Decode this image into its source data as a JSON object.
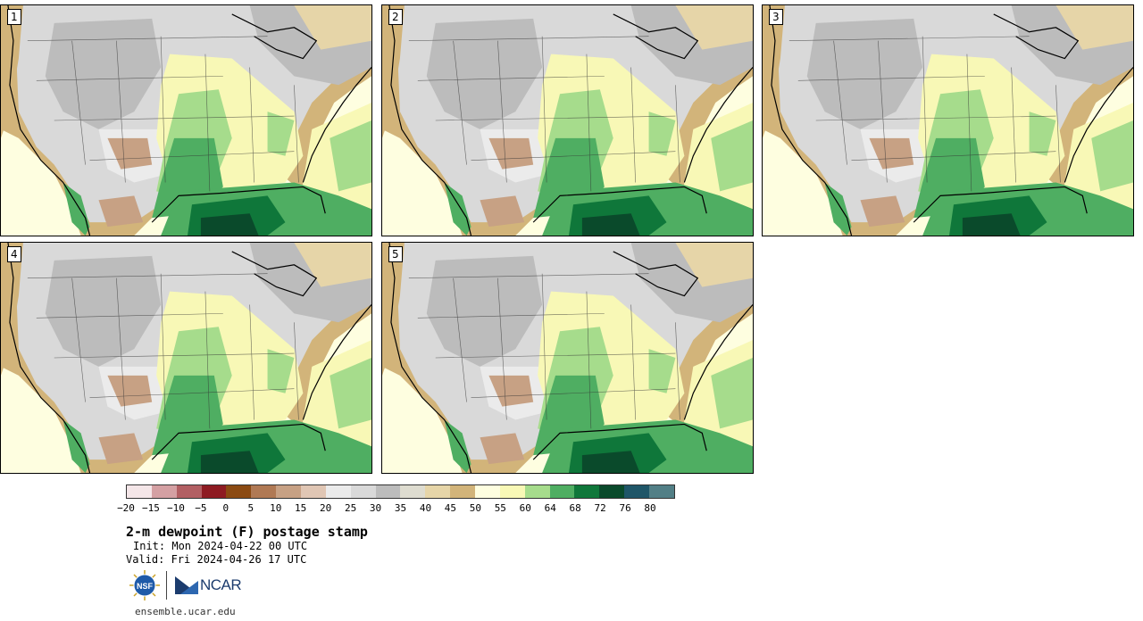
{
  "panels": [
    {
      "label": "1"
    },
    {
      "label": "2"
    },
    {
      "label": "3"
    },
    {
      "label": "4"
    },
    {
      "label": "5"
    }
  ],
  "colorbar": {
    "colors": [
      "#f4e6e8",
      "#d4a0a3",
      "#b25f63",
      "#8e1b22",
      "#8b4a12",
      "#b07954",
      "#c7a184",
      "#e0c6b4",
      "#ebebeb",
      "#d9d9d9",
      "#bcbcbc",
      "#dedcd0",
      "#e6d5a8",
      "#d2b47a",
      "#fefee0",
      "#f8f8b6",
      "#a6dc8c",
      "#4fae62",
      "#0f773a",
      "#0a4a2b",
      "#1f5668",
      "#527f86"
    ],
    "tick_labels": [
      "−20",
      "−15",
      "−10",
      "−5",
      "0",
      "5",
      "10",
      "15",
      "20",
      "25",
      "30",
      "35",
      "40",
      "45",
      "50",
      "55",
      "60",
      "64",
      "68",
      "72",
      "76",
      "80"
    ]
  },
  "title": "2-m dewpoint (F) postage stamp",
  "init": "Init: Mon 2024-04-22 00 UTC",
  "valid": "Valid: Fri 2024-04-26 17 UTC",
  "logos": {
    "nsf": "NSF",
    "ncar": "NCAR"
  },
  "url": "ensemble.ucar.edu"
}
